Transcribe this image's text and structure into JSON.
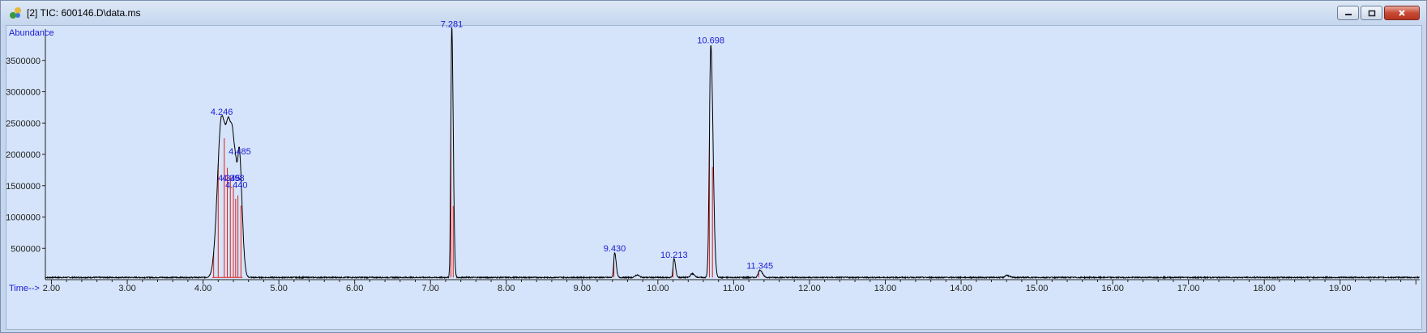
{
  "window": {
    "title": "[2] TIC: 600146.D\\data.ms",
    "icon": "chromatogram-app-icon",
    "buttons": [
      "minimize-icon",
      "restore-icon",
      "close-icon"
    ]
  },
  "chart_data": {
    "type": "line",
    "ylabel": "Abundance",
    "xlabel": "Time-->",
    "xlim": [
      1.92,
      20.05
    ],
    "ylim": [
      0,
      4000000
    ],
    "x_ticks": [
      "2.00",
      "3.00",
      "4.00",
      "5.00",
      "6.00",
      "7.00",
      "8.00",
      "9.00",
      "10.00",
      "11.00",
      "12.00",
      "13.00",
      "14.00",
      "15.00",
      "16.00",
      "17.00",
      "18.00",
      "19.00"
    ],
    "y_ticks": [
      "500000",
      "1000000",
      "1500000",
      "2000000",
      "2500000",
      "3000000",
      "3500000"
    ],
    "baseline": 35000,
    "peaks": [
      {
        "rt": 4.246,
        "height": 2580000,
        "width": 0.055
      },
      {
        "rt": 4.345,
        "height": 950000,
        "width": 0.03
      },
      {
        "rt": 4.398,
        "height": 1050000,
        "width": 0.03
      },
      {
        "rt": 4.44,
        "height": 620000,
        "width": 0.025
      },
      {
        "rt": 4.485,
        "height": 1400000,
        "width": 0.022
      },
      {
        "rt": 7.281,
        "height": 4000000,
        "width": 0.012
      },
      {
        "rt": 9.43,
        "height": 400000,
        "width": 0.012
      },
      {
        "rt": 9.72,
        "height": 40000,
        "width": 0.02
      },
      {
        "rt": 10.213,
        "height": 300000,
        "width": 0.012
      },
      {
        "rt": 10.45,
        "height": 60000,
        "width": 0.02
      },
      {
        "rt": 10.698,
        "height": 3720000,
        "width": 0.018
      },
      {
        "rt": 11.345,
        "height": 120000,
        "width": 0.02
      },
      {
        "rt": 14.6,
        "height": 35000,
        "width": 0.02
      }
    ],
    "peak_labels": [
      {
        "text": "4.246",
        "rt": 4.246,
        "y": 2580000
      },
      {
        "text": "4.485",
        "rt": 4.485,
        "y": 1950000
      },
      {
        "text": "4.345",
        "rt": 4.345,
        "y": 1520000
      },
      {
        "text": "4.398",
        "rt": 4.398,
        "y": 1520000
      },
      {
        "text": "4.440",
        "rt": 4.44,
        "y": 1410000
      },
      {
        "text": "7.281",
        "rt": 7.281,
        "y": 3980000
      },
      {
        "text": "9.430",
        "rt": 9.43,
        "y": 400000
      },
      {
        "text": "10.213",
        "rt": 10.213,
        "y": 300000
      },
      {
        "text": "10.698",
        "rt": 10.698,
        "y": 3720000
      },
      {
        "text": "11.345",
        "rt": 11.345,
        "y": 120000
      }
    ],
    "integration_marks": [
      4.14,
      4.2,
      4.28,
      4.32,
      4.36,
      4.4,
      4.43,
      4.46,
      4.5,
      7.27,
      7.3,
      9.42,
      10.2,
      10.68,
      10.72,
      11.33
    ],
    "colors": {
      "trace": "#000000",
      "labels": "#1b1bd6",
      "integration": "#e0201c",
      "background": "#d5e4fa"
    }
  }
}
